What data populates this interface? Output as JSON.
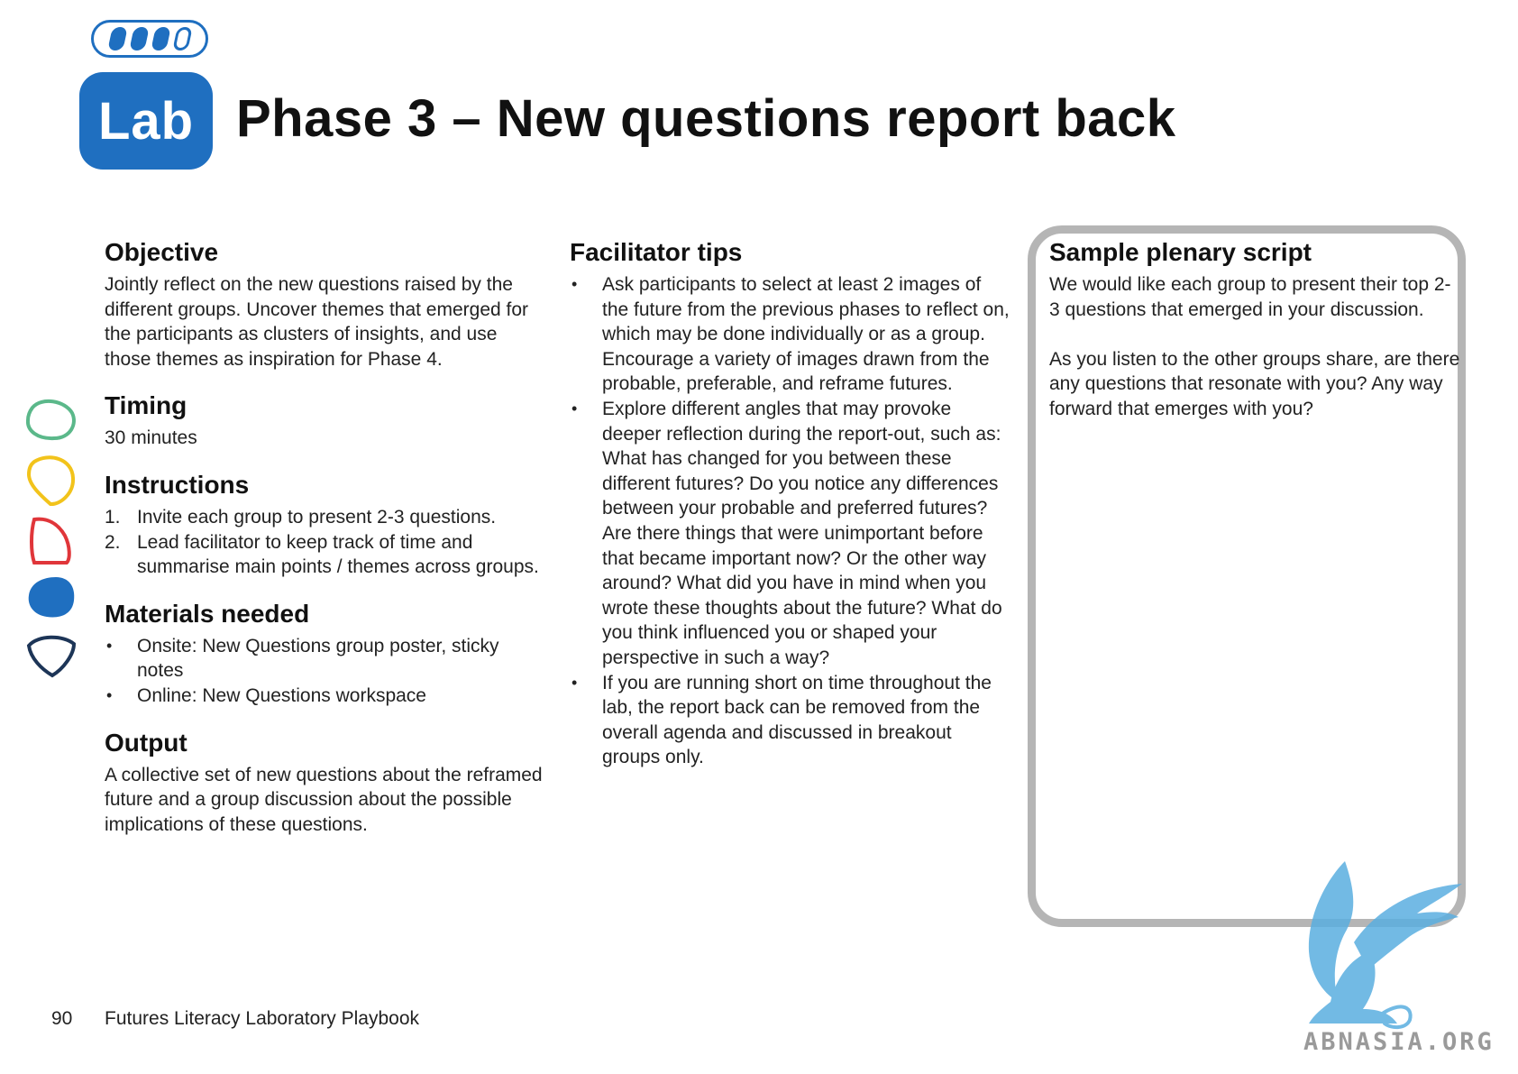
{
  "header": {
    "badge": "Lab",
    "title": "Phase 3 – New questions report back",
    "progress": {
      "filled": 3,
      "total": 4
    }
  },
  "shapes": [
    "green-blob-outline-icon",
    "yellow-blob-outline-icon",
    "red-blob-outline-icon",
    "blue-blob-filled-icon",
    "navy-blob-outline-icon"
  ],
  "colors": {
    "accent": "#1f6fc0",
    "green": "#5bb88a",
    "yellow": "#f2c31b",
    "red": "#e0363a",
    "navy": "#1d3557",
    "box_border": "#b5b5b5"
  },
  "objective": {
    "heading": "Objective",
    "body": "Jointly reflect on the new questions raised by the different groups. Uncover themes that emerged for the participants as clusters of insights, and use those themes as inspiration for Phase 4."
  },
  "timing": {
    "heading": "Timing",
    "body": "30 minutes"
  },
  "instructions": {
    "heading": "Instructions",
    "items": [
      {
        "num": "1.",
        "text": "Invite each group to present 2-3 questions."
      },
      {
        "num": "2.",
        "text": "Lead facilitator to keep track of time and summarise main points / themes across groups."
      }
    ]
  },
  "materials": {
    "heading": "Materials needed",
    "items": [
      "Onsite: New Questions group poster, sticky notes",
      "Online: New Questions workspace"
    ]
  },
  "output": {
    "heading": "Output",
    "body": "A collective set of new questions about the reframed future and a group discussion about the possible implications of these questions."
  },
  "tips": {
    "heading": "Facilitator tips",
    "items": [
      "Ask participants to select at least 2 images of the future from the previous phases to reflect on, which may be done individually or as a group. Encourage a variety of images drawn from the probable, preferable, and reframe futures.",
      "Explore different angles that may provoke deeper reflection during the report-out, such as: What has changed for you between these different futures? Do you notice any differences between your probable and preferred futures? Are there things that were unimportant before that became important now? Or the other way around?  What did you have in mind when you wrote these thoughts about the future? What do you think influenced you or shaped your perspective in such a way?",
      "If you are running short on time throughout the lab, the report back can be removed from the overall agenda and discussed in breakout groups only."
    ]
  },
  "script": {
    "heading": "Sample plenary script",
    "paragraphs": [
      "We would like each group to present their top 2-3 questions that emerged in your discussion.",
      "As you listen to the other groups share, are there any questions that resonate with you? Any way forward that emerges with you?"
    ]
  },
  "footer": {
    "page_number": "90",
    "book_title": "Futures Literacy Laboratory Playbook"
  },
  "watermark": {
    "text": "ABNASIA.ORG",
    "icon": "griffin-logo-icon"
  }
}
